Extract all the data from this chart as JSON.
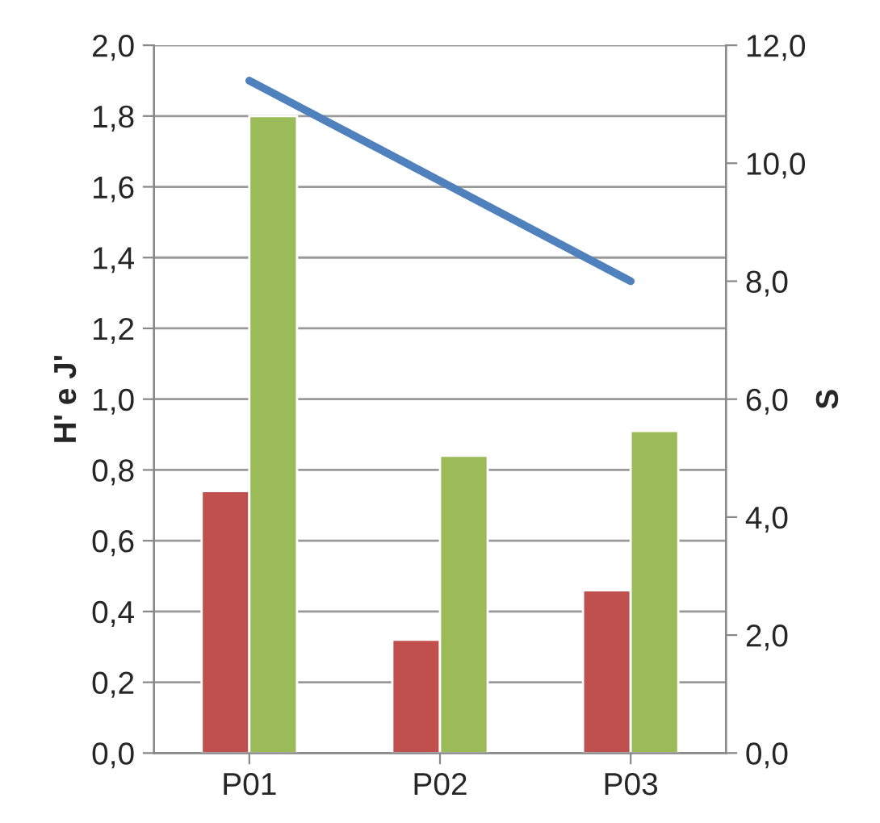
{
  "chart_data": {
    "type": "bar",
    "categories": [
      "P01",
      "P02",
      "P03"
    ],
    "series": [
      {
        "color": "#c0504d",
        "values": [
          0.74,
          0.32,
          0.46
        ]
      },
      {
        "color": "#9bbb59",
        "values": [
          1.8,
          0.84,
          0.91
        ]
      },
      {
        "type": "line",
        "axis": "y2",
        "color": "#4f81bd",
        "values": [
          11.4,
          9.7,
          8.0
        ]
      }
    ],
    "ylabel": "H' e J'",
    "y2label": "S",
    "ylim": [
      0,
      2
    ],
    "yticks": [
      {
        "value": 0,
        "label": "0,0"
      },
      {
        "value": 0.2,
        "label": "0,2"
      },
      {
        "value": 0.4,
        "label": "0,4"
      },
      {
        "value": 0.6,
        "label": "0,6"
      },
      {
        "value": 0.8,
        "label": "0,8"
      },
      {
        "value": 1.0,
        "label": "1,0"
      },
      {
        "value": 1.2,
        "label": "1,2"
      },
      {
        "value": 1.4,
        "label": "1,4"
      },
      {
        "value": 1.6,
        "label": "1,6"
      },
      {
        "value": 1.8,
        "label": "1,8"
      },
      {
        "value": 2.0,
        "label": "2,0"
      }
    ],
    "y2lim": [
      0,
      12
    ],
    "y2ticks": [
      {
        "value": 0,
        "label": "0,0"
      },
      {
        "value": 2,
        "label": "2,0"
      },
      {
        "value": 4,
        "label": "4,0"
      },
      {
        "value": 6,
        "label": "6,0"
      },
      {
        "value": 8,
        "label": "8,0"
      },
      {
        "value": 10,
        "label": "10,0"
      },
      {
        "value": 12,
        "label": "12,0"
      }
    ],
    "grid": "y",
    "marker": "none",
    "line_style": "solid"
  }
}
